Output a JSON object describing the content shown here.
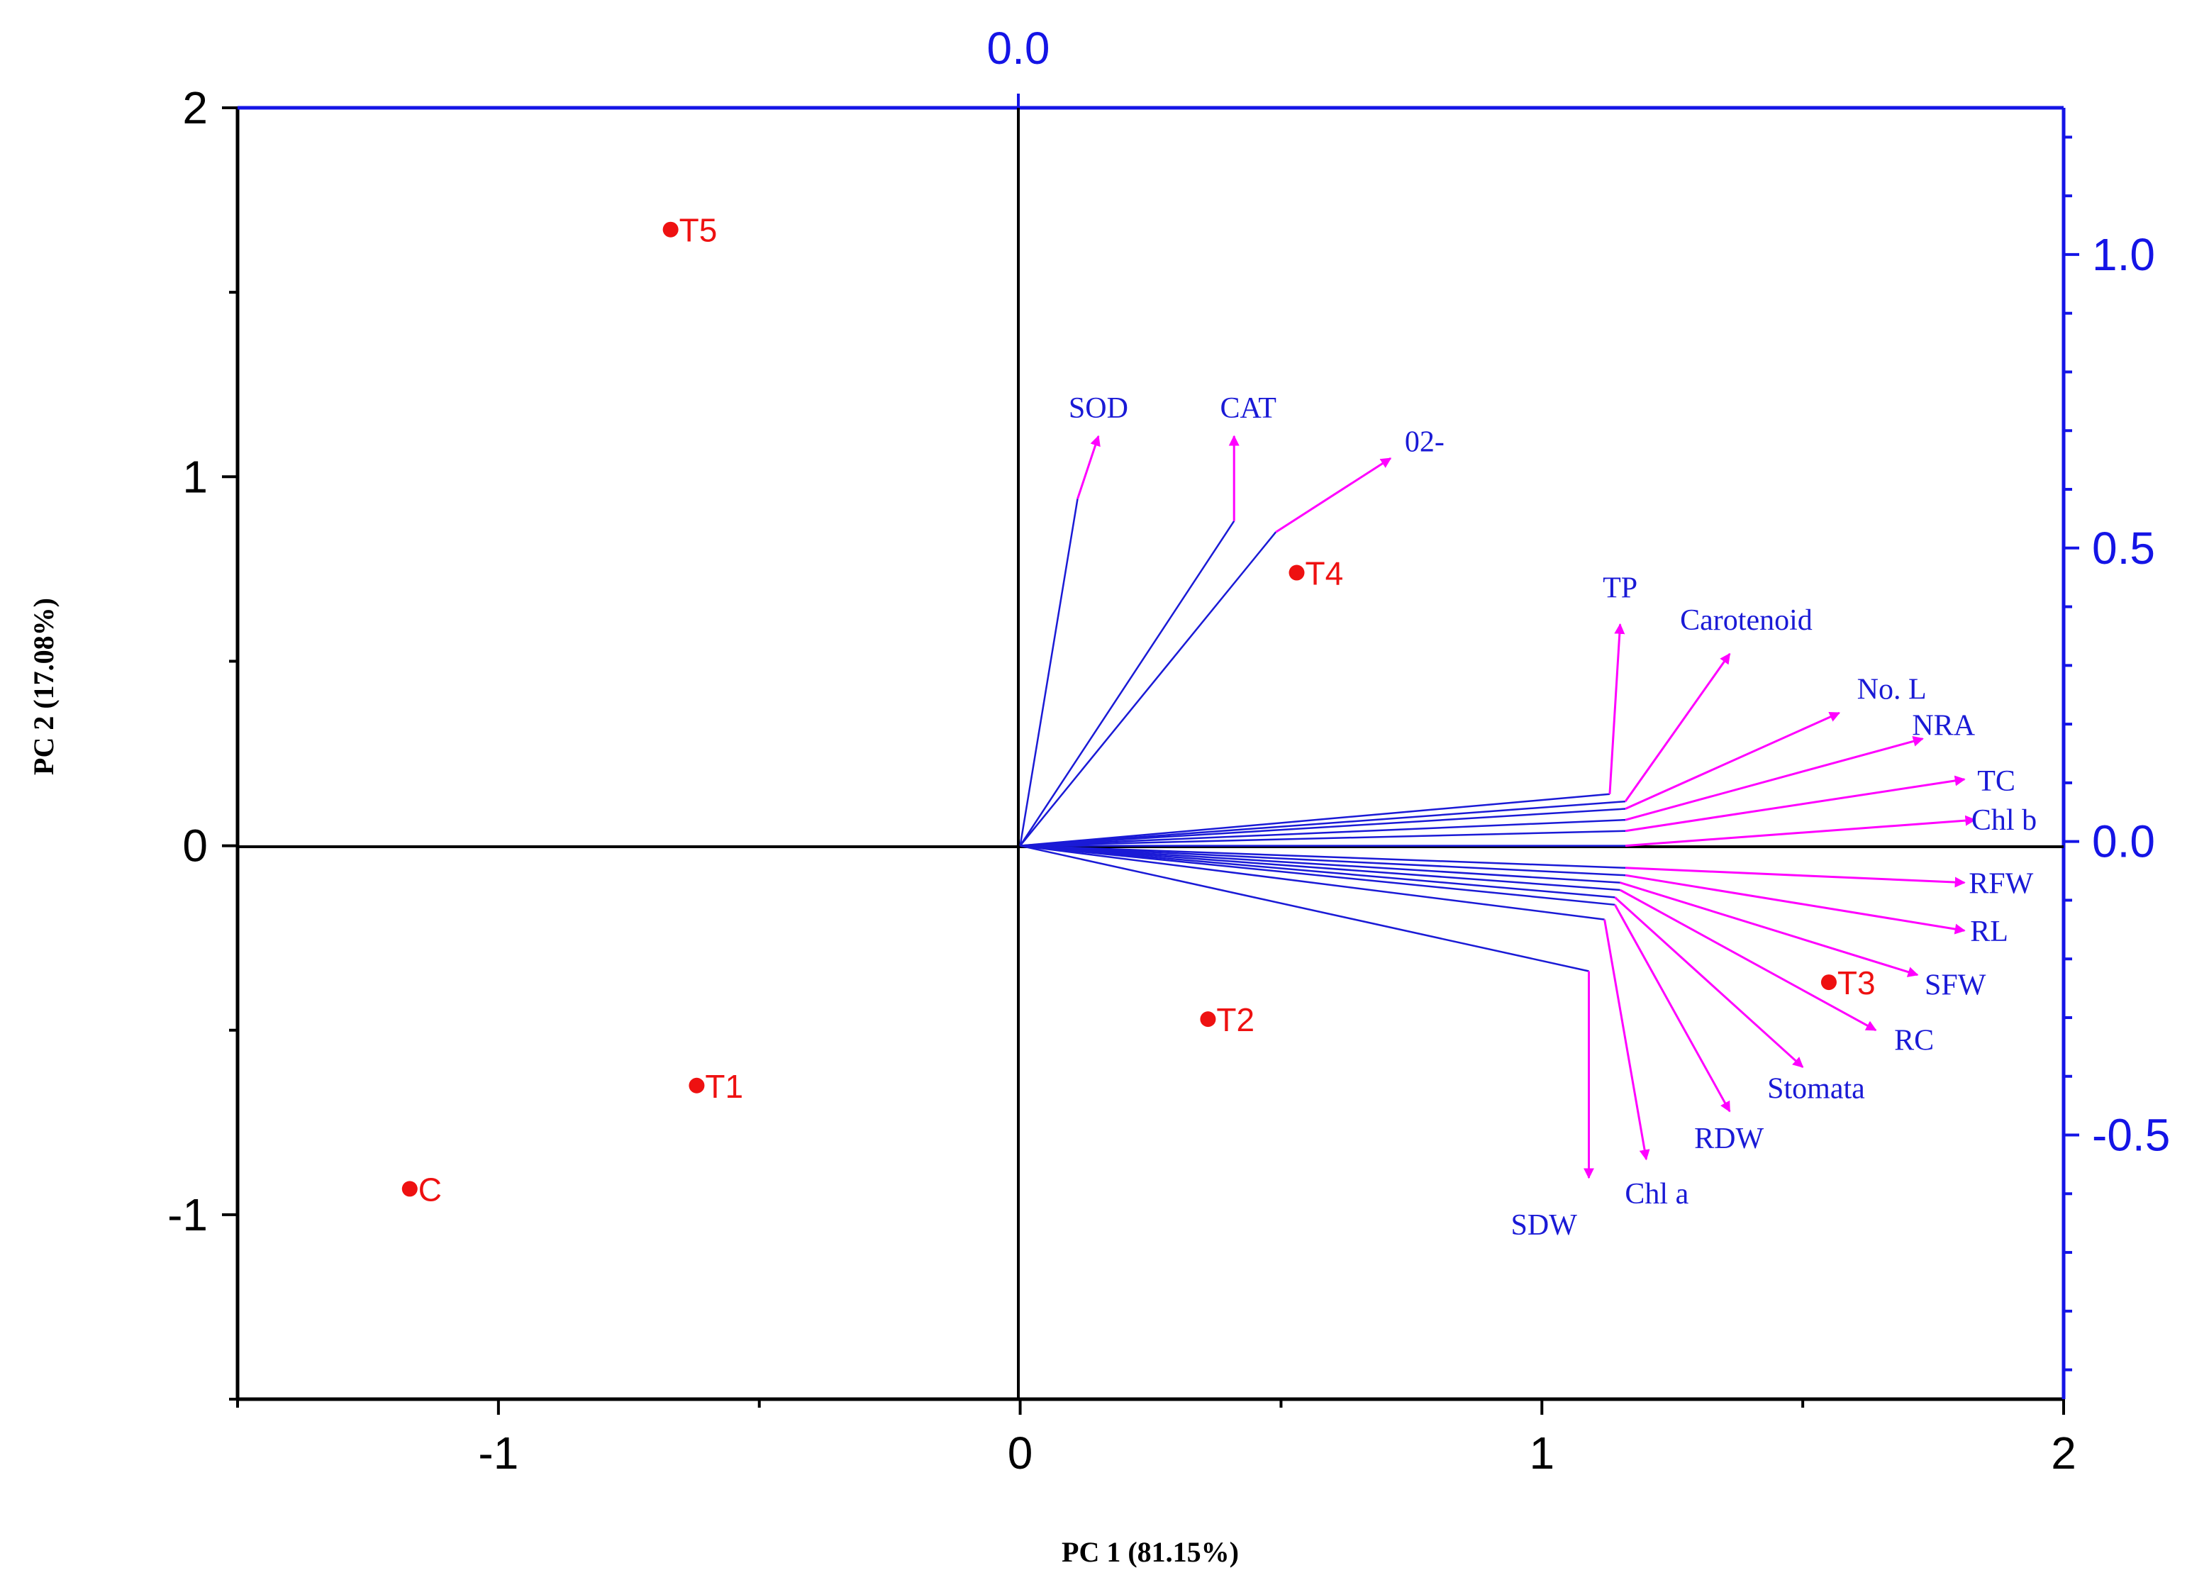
{
  "chart_data": {
    "type": "scatter",
    "subtype": "pca-biplot",
    "xlabel": "PC 1 (81.15%)",
    "ylabel": "PC 2 (17.08%)",
    "xlim": [
      -1.5,
      2
    ],
    "ylim": [
      -1.5,
      2
    ],
    "x_ticks": [
      -1,
      0,
      1,
      2
    ],
    "y_ticks": [
      -1,
      0,
      1,
      2
    ],
    "y2lim": [
      -0.95,
      1.25
    ],
    "y2_ticks": [
      -0.5,
      0.0,
      0.5,
      1.0
    ],
    "y2_tick_labels": [
      "-0.5",
      "0.0",
      "0.5",
      "1.0"
    ],
    "top_tick_label": "0.0",
    "colors": {
      "points": "#ee1111",
      "vectors": "#1a1ad6",
      "arrows": "#ff00ff",
      "secondary_axis": "#1414e6"
    },
    "scores": [
      {
        "name": "T5",
        "x": -0.67,
        "y": 1.67
      },
      {
        "name": "T4",
        "x": 0.53,
        "y": 0.74
      },
      {
        "name": "T2",
        "x": 0.36,
        "y": -0.47
      },
      {
        "name": "T1",
        "x": -0.62,
        "y": -0.65
      },
      {
        "name": "C",
        "x": -1.17,
        "y": -0.93
      },
      {
        "name": "T3",
        "x": 1.55,
        "y": -0.37
      }
    ],
    "loadings": [
      {
        "name": "SOD",
        "bx": 0.11,
        "by": 0.94,
        "ax": 0.15,
        "ay": 1.11
      },
      {
        "name": "CAT",
        "bx": 0.41,
        "by": 0.88,
        "ax": 0.41,
        "ay": 1.11
      },
      {
        "name": "02-",
        "bx": 0.49,
        "by": 0.85,
        "ax": 0.71,
        "ay": 1.05
      },
      {
        "name": "TP",
        "bx": 1.13,
        "by": 0.14,
        "ax": 1.15,
        "ay": 0.6
      },
      {
        "name": "Carotenoid",
        "bx": 1.16,
        "by": 0.12,
        "ax": 1.36,
        "ay": 0.52
      },
      {
        "name": "No. L",
        "bx": 1.16,
        "by": 0.1,
        "ax": 1.57,
        "ay": 0.36
      },
      {
        "name": "NRA",
        "bx": 1.16,
        "by": 0.07,
        "ax": 1.73,
        "ay": 0.29
      },
      {
        "name": "TC",
        "bx": 1.16,
        "by": 0.04,
        "ax": 1.81,
        "ay": 0.18
      },
      {
        "name": "Chl b",
        "bx": 1.16,
        "by": 0.0,
        "ax": 1.83,
        "ay": 0.07
      },
      {
        "name": "RFW",
        "bx": 1.16,
        "by": -0.06,
        "ax": 1.81,
        "ay": -0.1
      },
      {
        "name": "RL",
        "bx": 1.16,
        "by": -0.08,
        "ax": 1.81,
        "ay": -0.23
      },
      {
        "name": "SFW",
        "bx": 1.15,
        "by": -0.1,
        "ax": 1.72,
        "ay": -0.35
      },
      {
        "name": "RC",
        "bx": 1.15,
        "by": -0.12,
        "ax": 1.64,
        "ay": -0.5
      },
      {
        "name": "Stomata",
        "bx": 1.14,
        "by": -0.14,
        "ax": 1.5,
        "ay": -0.6
      },
      {
        "name": "RDW",
        "bx": 1.14,
        "by": -0.16,
        "ax": 1.36,
        "ay": -0.72
      },
      {
        "name": "Chl a",
        "bx": 1.12,
        "by": -0.2,
        "ax": 1.2,
        "ay": -0.85
      },
      {
        "name": "SDW",
        "bx": 1.09,
        "by": -0.34,
        "ax": 1.09,
        "ay": -0.9
      }
    ]
  }
}
